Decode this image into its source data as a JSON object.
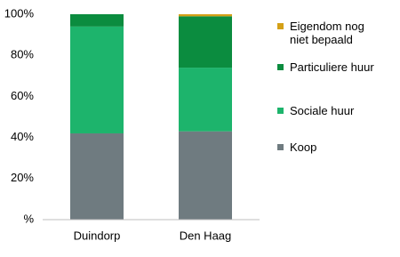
{
  "chart_data": {
    "type": "stacked_bar",
    "categories": [
      "Duindorp",
      "Den Haag"
    ],
    "series": [
      {
        "name": "Koop",
        "color": "#6f7b80",
        "values": [
          42,
          43
        ]
      },
      {
        "name": "Sociale huur",
        "color": "#1db46c",
        "values": [
          52,
          31
        ]
      },
      {
        "name": "Particuliere huur",
        "color": "#0b8c3f",
        "values": [
          6,
          25
        ]
      },
      {
        "name": "Eigendom nog niet bepaald",
        "color": "#d4a017",
        "values": [
          0,
          1
        ]
      }
    ],
    "ylim": [
      0,
      100
    ],
    "yticks": [
      {
        "value": 0,
        "label": "%"
      },
      {
        "value": 20,
        "label": "20%"
      },
      {
        "value": 40,
        "label": "40%"
      },
      {
        "value": 60,
        "label": "60%"
      },
      {
        "value": 80,
        "label": "80%"
      },
      {
        "value": 100,
        "label": "100%"
      }
    ],
    "grid": false,
    "legend": "right"
  }
}
